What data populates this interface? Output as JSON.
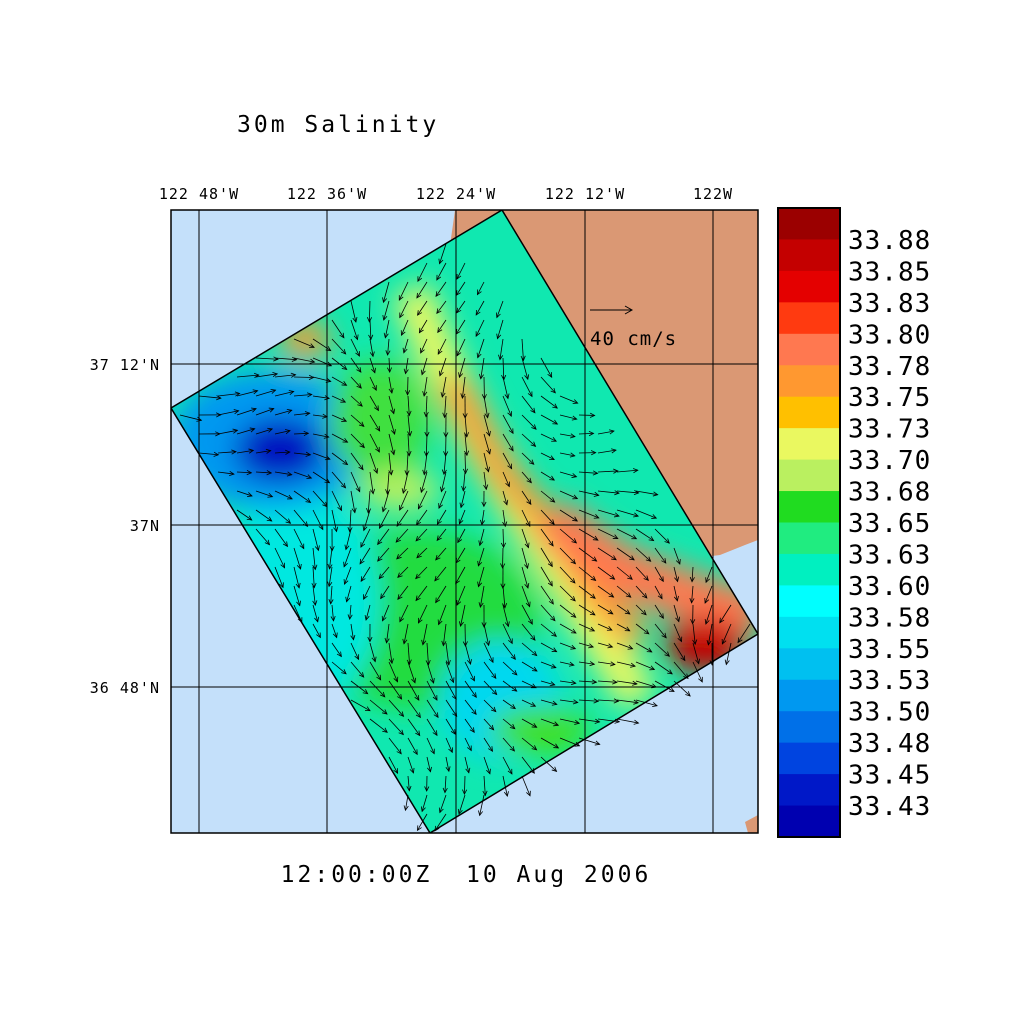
{
  "title": "30m Salinity",
  "longitude_labels": [
    "122 48'W",
    "122 36'W",
    "122 24'W",
    "122 12'W",
    "122W"
  ],
  "latitude_labels": [
    "37 12'N",
    "37N",
    "36 48'N"
  ],
  "scale_arrow_label": "40 cm/s",
  "timestamp": "12:00:00Z  10 Aug 2006",
  "colorbar": {
    "labels": [
      "33.88",
      "33.85",
      "33.83",
      "33.80",
      "33.78",
      "33.75",
      "33.73",
      "33.70",
      "33.68",
      "33.65",
      "33.63",
      "33.60",
      "33.58",
      "33.55",
      "33.53",
      "33.50",
      "33.48",
      "33.45",
      "33.43"
    ],
    "colors": [
      "#9b0000",
      "#c40000",
      "#e40000",
      "#ff3a10",
      "#ff7850",
      "#ff9830",
      "#ffc000",
      "#eaf860",
      "#baf060",
      "#20dc20",
      "#20ec80",
      "#00f0c0",
      "#00ffff",
      "#00e0f0",
      "#00c0f0",
      "#0098f0",
      "#0070e8",
      "#0044e0",
      "#0018c8",
      "#0000b0"
    ]
  }
}
